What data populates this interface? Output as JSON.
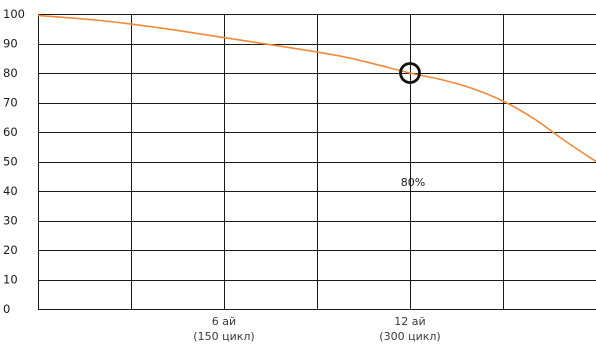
{
  "chart_data": {
    "type": "line",
    "title": "",
    "xlabel": "",
    "ylabel": "",
    "ylim": [
      0,
      100
    ],
    "y_ticks": [
      0,
      10,
      20,
      30,
      40,
      50,
      60,
      70,
      80,
      90,
      100
    ],
    "xlim": [
      0,
      18
    ],
    "x_gridlines": [
      3,
      6,
      9,
      12,
      15
    ],
    "x_tick_labels": [
      {
        "x": 6,
        "line1": "6 ай",
        "line2": "(150 цикл)"
      },
      {
        "x": 12,
        "line1": "12 ай",
        "line2": "(300 цикл)"
      }
    ],
    "grid": true,
    "series": [
      {
        "color": "#f08a3a",
        "x": [
          0,
          2,
          4,
          6,
          8,
          10,
          12,
          13,
          14,
          15,
          16,
          17,
          18
        ],
        "y": [
          99.5,
          97.8,
          95.2,
          92.0,
          88.8,
          85.2,
          80.0,
          77.8,
          74.8,
          70.5,
          64.5,
          57.0,
          50.0
        ]
      }
    ],
    "marker": {
      "x": 12,
      "y": 80,
      "shape": "circle",
      "color": "#111111"
    },
    "annotation": {
      "x": 12,
      "y": 43,
      "text": "80%"
    }
  }
}
